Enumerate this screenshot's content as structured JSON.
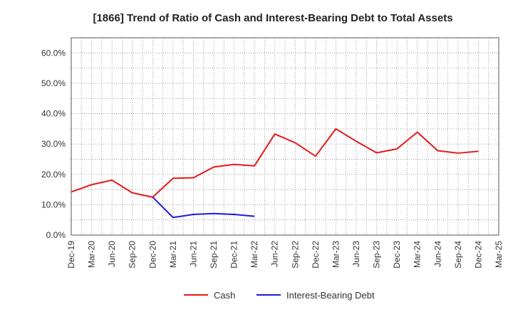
{
  "chart_data": {
    "type": "line",
    "title": "[1866]  Trend of Ratio of Cash and Interest-Bearing Debt to Total Assets",
    "xlabel": "",
    "ylabel": "",
    "ylim": [
      0,
      65
    ],
    "ytick_values": [
      0,
      10,
      20,
      30,
      40,
      50,
      60
    ],
    "ytick_labels": [
      "0.0%",
      "10.0%",
      "20.0%",
      "30.0%",
      "40.0%",
      "50.0%",
      "60.0%"
    ],
    "categories": [
      "Dec-19",
      "Mar-20",
      "Jun-20",
      "Sep-20",
      "Dec-20",
      "Mar-21",
      "Jun-21",
      "Sep-21",
      "Dec-21",
      "Mar-22",
      "Jun-22",
      "Sep-22",
      "Dec-22",
      "Mar-23",
      "Jun-23",
      "Sep-23",
      "Dec-23",
      "Mar-24",
      "Jun-24",
      "Sep-24",
      "Dec-24",
      "Mar-25"
    ],
    "grid": true,
    "legend_position": "bottom-center",
    "series": [
      {
        "name": "Cash",
        "color": "#e8191a",
        "values": [
          14.2,
          16.6,
          18.1,
          13.9,
          12.5,
          18.7,
          18.9,
          22.4,
          23.3,
          22.8,
          33.3,
          30.4,
          26.0,
          35.0,
          30.9,
          27.1,
          28.4,
          33.9,
          27.8,
          27.0,
          27.6,
          null
        ]
      },
      {
        "name": "Interest-Bearing Debt",
        "color": "#1a1adc",
        "values": [
          null,
          null,
          null,
          null,
          12.5,
          5.8,
          6.8,
          7.1,
          6.8,
          6.2,
          null,
          null,
          null,
          null,
          null,
          null,
          null,
          null,
          null,
          null,
          null,
          null
        ]
      }
    ]
  }
}
